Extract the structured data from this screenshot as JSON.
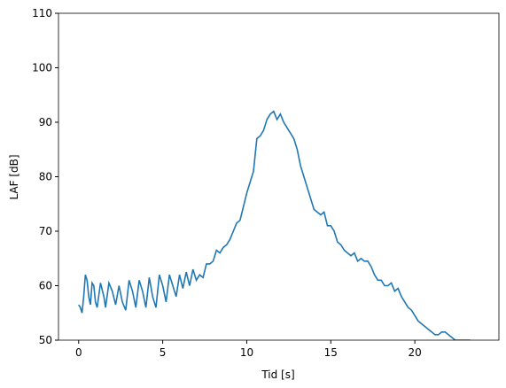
{
  "chart_data": {
    "type": "line",
    "xlabel": "Tid [s]",
    "ylabel": "LAF [dB]",
    "xlim": [
      -1.2,
      25
    ],
    "xticks": [
      0,
      5,
      10,
      15,
      20
    ],
    "ylim": [
      50,
      110
    ],
    "yticks": [
      50,
      60,
      70,
      80,
      90,
      100,
      110
    ],
    "series": [
      {
        "name": "LAF",
        "color": "#1f77b4",
        "x": [
          0,
          0.1,
          0.2,
          0.3,
          0.4,
          0.5,
          0.6,
          0.7,
          0.8,
          0.9,
          1.0,
          1.1,
          1.3,
          1.5,
          1.6,
          1.8,
          2.0,
          2.2,
          2.4,
          2.6,
          2.8,
          3.0,
          3.2,
          3.4,
          3.6,
          3.8,
          4.0,
          4.2,
          4.4,
          4.6,
          4.8,
          5.0,
          5.2,
          5.4,
          5.6,
          5.8,
          6.0,
          6.2,
          6.4,
          6.6,
          6.8,
          7.0,
          7.2,
          7.4,
          7.6,
          7.8,
          8.0,
          8.2,
          8.4,
          8.6,
          8.8,
          9.0,
          9.2,
          9.4,
          9.6,
          9.8,
          10.0,
          10.2,
          10.4,
          10.6,
          10.8,
          11.0,
          11.2,
          11.4,
          11.6,
          11.8,
          12.0,
          12.2,
          12.4,
          12.6,
          12.8,
          13.0,
          13.2,
          13.4,
          13.6,
          13.8,
          14.0,
          14.2,
          14.4,
          14.6,
          14.8,
          15.0,
          15.2,
          15.4,
          15.6,
          15.8,
          16.0,
          16.2,
          16.4,
          16.6,
          16.8,
          17.0,
          17.2,
          17.4,
          17.6,
          17.8,
          18.0,
          18.2,
          18.4,
          18.6,
          18.8,
          19.0,
          19.2,
          19.4,
          19.6,
          19.8,
          20.0,
          20.2,
          20.4,
          20.6,
          20.8,
          21.0,
          21.2,
          21.4,
          21.6,
          21.8,
          22.0,
          22.2,
          22.4,
          22.6,
          22.8,
          23.0,
          23.3
        ],
        "values": [
          56.5,
          56,
          55,
          58,
          62,
          61,
          58,
          56.5,
          60.5,
          60,
          57,
          56,
          60.5,
          58,
          56,
          60.5,
          59,
          56.5,
          60,
          57,
          55.5,
          61,
          59,
          56,
          61,
          59,
          56,
          61.5,
          58,
          56,
          62,
          60,
          57,
          62,
          60,
          58,
          62,
          59.5,
          62.5,
          60,
          63,
          61,
          62,
          61.5,
          64,
          64,
          64.5,
          66.5,
          66,
          67,
          67.5,
          68.5,
          70,
          71.5,
          72,
          74.5,
          77,
          79,
          81,
          87,
          87.5,
          88.5,
          90.5,
          91.5,
          92,
          90.5,
          91.5,
          90,
          89,
          88,
          87,
          85,
          82,
          80,
          78,
          76,
          74,
          73.5,
          73,
          73.5,
          71,
          71,
          70,
          68,
          67.5,
          66.5,
          66,
          65.5,
          66,
          64.5,
          65,
          64.5,
          64.5,
          63.5,
          62,
          61,
          61,
          60,
          60,
          60.5,
          59,
          59.5,
          58,
          57,
          56,
          55.5,
          54.5,
          53.5,
          53,
          52.5,
          52,
          51.5,
          51,
          51,
          51.5,
          51.5,
          51,
          50.5,
          50,
          50,
          50,
          50,
          50
        ]
      }
    ]
  }
}
